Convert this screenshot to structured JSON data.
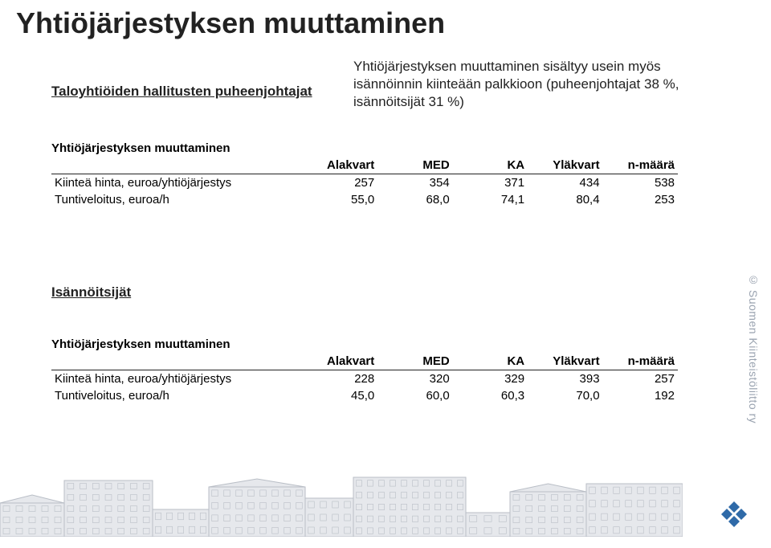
{
  "title": "Yhtiöjärjestyksen muuttaminen",
  "subhead_left": "Taloyhtiöiden hallitusten puheenjohtajat",
  "subhead_right": "Yhtiöjärjestyksen muuttaminen sisältyy usein myös isännöinnin kiinteään palkkioon (puheenjohtajat 38 %, isännöitsijät 31 %)",
  "columns": [
    "Alakvart",
    "MED",
    "KA",
    "Yläkvart",
    "n-määrä"
  ],
  "table1": {
    "title": "Yhtiöjärjestyksen muuttaminen",
    "rows": [
      {
        "label": "Kiinteä hinta, euroa/yhtiöjärjestys",
        "vals": [
          "257",
          "354",
          "371",
          "434",
          "538"
        ]
      },
      {
        "label": "Tuntiveloitus, euroa/h",
        "vals": [
          "55,0",
          "68,0",
          "74,1",
          "80,4",
          "253"
        ]
      }
    ]
  },
  "section2_heading": "Isännöitsijät",
  "table2": {
    "title": "Yhtiöjärjestyksen muuttaminen",
    "rows": [
      {
        "label": "Kiinteä hinta, euroa/yhtiöjärjestys",
        "vals": [
          "228",
          "320",
          "329",
          "393",
          "257"
        ]
      },
      {
        "label": "Tuntiveloitus, euroa/h",
        "vals": [
          "45,0",
          "60,0",
          "60,3",
          "70,0",
          "192"
        ]
      }
    ]
  },
  "copyright": "© Suomen Kiinteistöliitto ry",
  "style": {
    "skyline_stroke": "#b9bec6",
    "skyline_fill": "#e6e8ec",
    "logo_color": "#2f6aa8"
  }
}
